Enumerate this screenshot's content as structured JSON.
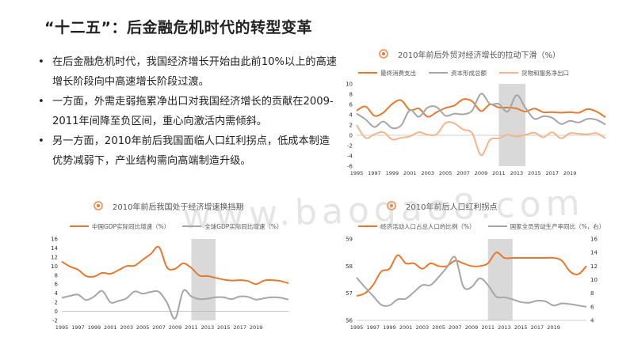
{
  "slide": {
    "title": "“十二五”：后金融危机时代的转型变革",
    "bullets": [
      "在后金融危机时代，我国经济增长开始由此前10%以上的高速增长阶段向中高速增长阶段过渡。",
      "一方面，外需走弱拖累净出口对我国经济增长的贡献在2009-2011年间降至负区间，重心向激活内需倾斜。",
      "另一方面，2010年前后我国面临人口红利拐点，低成本制造优势减弱下，产业结构需向高端制造升级。"
    ],
    "bullet_symbol": "•",
    "watermark": "www.baogao8.com"
  },
  "colors": {
    "orange": "#E8782E",
    "gray": "#A6A6A6",
    "light_orange": "#F5B48A",
    "shade": "#D9D9D9"
  },
  "chart_data": [
    {
      "type": "line",
      "title": "2010年前后外贸对经济增长的拉动下滑（%）",
      "x": [
        1995,
        1996,
        1997,
        1998,
        1999,
        2000,
        2001,
        2002,
        2003,
        2004,
        2005,
        2006,
        2007,
        2008,
        2009,
        2010,
        2011,
        2012,
        2013,
        2014,
        2015,
        2016,
        2017,
        2018,
        2019,
        2020,
        2021,
        2022,
        2023
      ],
      "xticks": [
        "1995",
        "1997",
        "1999",
        "2001",
        "2003",
        "2005",
        "2007",
        "2009",
        "2011",
        "2013",
        "2015",
        "2017",
        "2019"
      ],
      "yticks": [
        "10",
        "8",
        "6",
        "4",
        "2",
        "0",
        "-2",
        "-4",
        "-6"
      ],
      "ylim": [
        -6,
        10
      ],
      "shaded": [
        2011,
        2014
      ],
      "series": [
        {
          "name": "最终消费支出",
          "color": "#E8782E",
          "values": [
            4.8,
            5.6,
            3.8,
            4.4,
            6.1,
            6.8,
            4.9,
            5.2,
            3.6,
            4.5,
            5.3,
            5.8,
            7.0,
            6.6,
            4.7,
            6.0,
            5.4,
            5.4,
            5.2,
            4.6,
            5.2,
            4.5,
            4.5,
            4.4,
            4.5,
            4.4,
            5.1,
            4.6,
            3.5
          ]
        },
        {
          "name": "资本形成总额",
          "color": "#A6A6A6",
          "values": [
            4.2,
            3.1,
            1.6,
            2.7,
            1.4,
            1.9,
            4.9,
            3.6,
            5.4,
            5.5,
            3.8,
            4.2,
            4.1,
            4.8,
            8.1,
            6.1,
            6.1,
            4.6,
            7.8,
            5.3,
            3.2,
            3.7,
            3.4,
            2.2,
            2.8,
            2.5,
            3.2,
            3.0,
            2.1
          ]
        },
        {
          "name": "货物和服务净出口",
          "color": "#F5B48A",
          "values": [
            2.0,
            -0.5,
            0.2,
            0.6,
            -0.8,
            -0.5,
            -0.2,
            0.6,
            0.1,
            0.2,
            2.4,
            2.3,
            1.1,
            0.4,
            -3.9,
            -0.9,
            -0.6,
            0.1,
            -0.3,
            0.1,
            0.5,
            -0.4,
            0.6,
            -0.6,
            0.4,
            0.3,
            0.2,
            0.4,
            -0.6
          ]
        }
      ]
    },
    {
      "type": "line",
      "title": "2010年前后我国处于经济增速换挡期",
      "x": [
        1995,
        1996,
        1997,
        1998,
        1999,
        2000,
        2001,
        2002,
        2003,
        2004,
        2005,
        2006,
        2007,
        2008,
        2009,
        2010,
        2011,
        2012,
        2013,
        2014,
        2015,
        2016,
        2017,
        2018,
        2019,
        2020,
        2021,
        2022,
        2023
      ],
      "xticks": [
        "1995",
        "1997",
        "1999",
        "2001",
        "2003",
        "2005",
        "2007",
        "2009",
        "2011",
        "2013",
        "2015",
        "2017",
        "2019"
      ],
      "yticks": [
        "16",
        "14",
        "12",
        "10",
        "8",
        "6",
        "4",
        "2",
        "0",
        "-2"
      ],
      "ylim": [
        -2,
        16
      ],
      "shaded": [
        2011,
        2014
      ],
      "series": [
        {
          "name": "中国GDP实际同比增速（%）",
          "color": "#E8782E",
          "values": [
            11.0,
            9.9,
            9.2,
            7.8,
            7.7,
            8.5,
            8.3,
            9.1,
            10.0,
            10.1,
            11.4,
            12.7,
            14.2,
            9.7,
            9.4,
            10.6,
            9.6,
            7.9,
            7.8,
            7.4,
            7.0,
            6.8,
            6.9,
            6.7,
            6.0,
            6.8,
            6.9,
            6.7,
            6.2
          ]
        },
        {
          "name": "全球GDP实际同比增速（%）",
          "color": "#A6A6A6",
          "values": [
            3.0,
            3.4,
            3.7,
            2.5,
            3.3,
            4.5,
            2.0,
            2.3,
            2.9,
            4.4,
            3.9,
            4.3,
            4.3,
            1.9,
            -1.6,
            4.5,
            3.3,
            2.7,
            2.8,
            3.1,
            3.1,
            2.7,
            3.3,
            3.2,
            2.6,
            2.9,
            3.1,
            3.0,
            2.6
          ]
        }
      ]
    },
    {
      "type": "line",
      "title": "2010年前后人口红利拐点",
      "x": [
        1995,
        1996,
        1997,
        1998,
        1999,
        2000,
        2001,
        2002,
        2003,
        2004,
        2005,
        2006,
        2007,
        2008,
        2009,
        2010,
        2011,
        2012,
        2013,
        2014,
        2015,
        2016,
        2017,
        2018,
        2019,
        2020,
        2021,
        2022,
        2023
      ],
      "xticks": [
        "1995",
        "1997",
        "1999",
        "2001",
        "2003",
        "2005",
        "2007",
        "2009",
        "2011",
        "2013",
        "2015",
        "2017",
        "2019"
      ],
      "yticks_left": [
        "59",
        "58",
        "57",
        "56"
      ],
      "yticks_right": [
        "16",
        "14",
        "12",
        "10",
        "8",
        "6",
        "4"
      ],
      "ylim_left": [
        56,
        59
      ],
      "ylim_right": [
        4,
        16
      ],
      "shaded": [
        2011,
        2014
      ],
      "series": [
        {
          "name": "经济活动人口占总人口的比例（%）",
          "color": "#E8782E",
          "axis": "left",
          "values": [
            56.9,
            57.0,
            57.3,
            57.8,
            57.9,
            58.4,
            58.1,
            58.1,
            57.9,
            58.1,
            58.0,
            58.0,
            58.2,
            58.1,
            58.0,
            58.0,
            58.1,
            58.5,
            58.3,
            58.3,
            58.3,
            58.3,
            58.3,
            58.3,
            58.3,
            58.2,
            57.8,
            57.7,
            58.0
          ]
        },
        {
          "name": "国家全员劳动生产率同比（%，右）",
          "color": "#A6A6A6",
          "axis": "right",
          "values": [
            10.3,
            8.9,
            7.6,
            6.3,
            6.2,
            7.1,
            7.2,
            8.2,
            9.2,
            9.2,
            10.4,
            11.8,
            13.3,
            9.0,
            8.9,
            10.2,
            9.2,
            7.5,
            7.4,
            7.1,
            6.7,
            6.6,
            6.9,
            6.8,
            6.2,
            6.5,
            6.4,
            6.2,
            6.0
          ]
        }
      ]
    }
  ]
}
